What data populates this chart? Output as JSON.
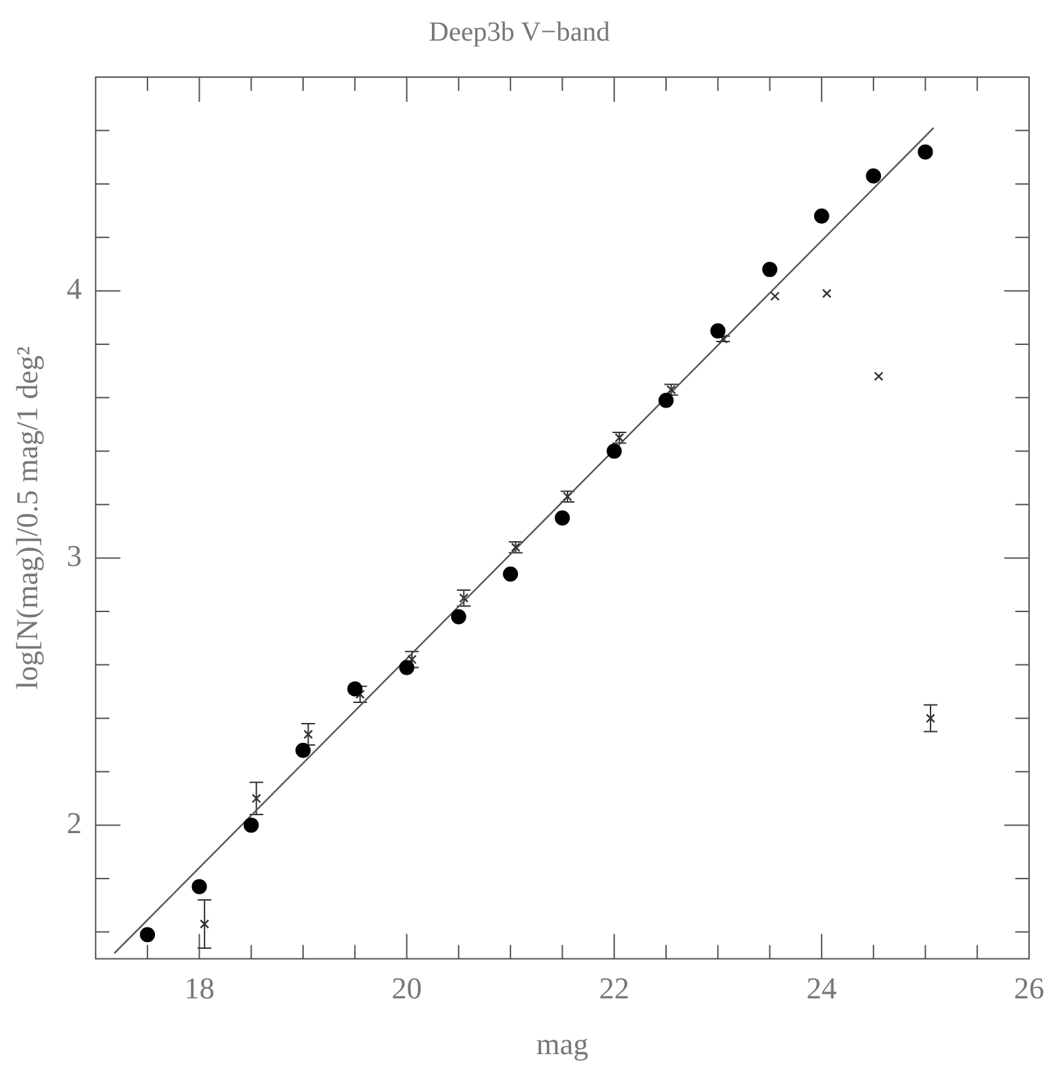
{
  "chart_data": {
    "type": "scatter",
    "title": "Deep3b V−band",
    "xlabel": "mag",
    "ylabel": "log[N(mag)]/0.5 mag/1 deg²",
    "xlim": [
      17,
      26
    ],
    "xticks": [
      {
        "value": 17.5,
        "label": null
      },
      18,
      {
        "value": 18.5,
        "label": null
      },
      {
        "value": 19,
        "label": null
      },
      {
        "value": 19.5,
        "label": null
      },
      20,
      {
        "value": 20.5,
        "label": null
      },
      {
        "value": 21,
        "label": null
      },
      {
        "value": 21.5,
        "label": null
      },
      22,
      {
        "value": 22.5,
        "label": null
      },
      {
        "value": 23,
        "label": null
      },
      {
        "value": 23.5,
        "label": null
      },
      24,
      {
        "value": 24.5,
        "label": null
      },
      {
        "value": 25,
        "label": null
      },
      {
        "value": 25.5,
        "label": null
      },
      26
    ],
    "ylim": [
      1.5,
      4.8
    ],
    "yticks": [
      {
        "value": 1.6,
        "label": null
      },
      {
        "value": 1.8,
        "label": null
      },
      2,
      {
        "value": 2.2,
        "label": null
      },
      {
        "value": 2.4,
        "label": null
      },
      {
        "value": 2.6,
        "label": null
      },
      {
        "value": 2.8,
        "label": null
      },
      3,
      {
        "value": 3.2,
        "label": null
      },
      {
        "value": 3.4,
        "label": null
      },
      {
        "value": 3.6,
        "label": null
      },
      {
        "value": 3.8,
        "label": null
      },
      4,
      {
        "value": 4.2,
        "label": null
      },
      {
        "value": 4.4,
        "label": null
      },
      {
        "value": 4.6,
        "label": null
      }
    ],
    "grid": false,
    "legend": false,
    "series": [
      {
        "type": "scatter",
        "marker": "circle",
        "color": "#000000",
        "x": [
          17.5,
          18,
          18.5,
          19,
          19.5,
          20,
          20.5,
          21,
          21.5,
          22,
          22.5,
          23,
          23.5,
          24,
          24.5,
          25
        ],
        "values": [
          1.59,
          1.77,
          2.0,
          2.28,
          2.51,
          2.59,
          2.78,
          2.94,
          3.15,
          3.4,
          3.59,
          3.85,
          4.08,
          4.28,
          4.43,
          4.52
        ]
      },
      {
        "type": "scatter",
        "marker": "cross",
        "color": "#333333",
        "x": [
          18.05,
          18.55,
          19.05,
          19.55,
          20.05,
          20.55,
          21.05,
          21.55,
          22.05,
          22.55,
          23.05,
          23.55,
          24.05,
          24.55,
          25.05
        ],
        "values": [
          1.63,
          2.1,
          2.34,
          2.49,
          2.62,
          2.85,
          3.04,
          3.23,
          3.45,
          3.63,
          3.82,
          3.98,
          3.99,
          3.68,
          2.4
        ],
        "errors": [
          0.09,
          0.06,
          0.04,
          0.03,
          0.03,
          0.03,
          0.02,
          0.02,
          0.02,
          0.02,
          0.01,
          null,
          null,
          null,
          0.05
        ]
      },
      {
        "type": "line",
        "marker": "none",
        "line_style": "solid",
        "color": "#555555",
        "x": [
          17.18,
          25.08
        ],
        "values": [
          1.52,
          4.61
        ]
      }
    ]
  }
}
